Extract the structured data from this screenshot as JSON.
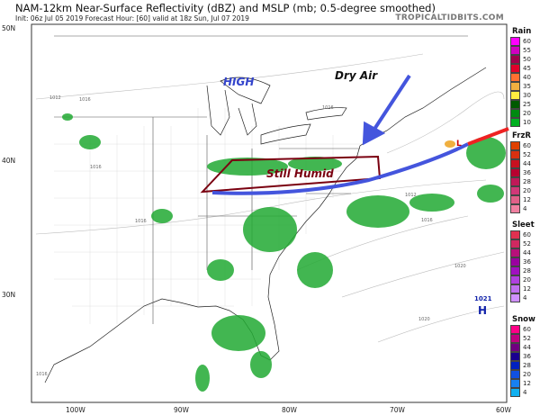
{
  "header": {
    "title": "NAM-12km Near-Surface Reflectivity (dBZ) and MSLP (mb; 0.5-degree smoothed)",
    "subtitle": "Init: 06z Jul 05 2019   Forecast Hour: [60]   valid at 18z Sun, Jul 07 2019",
    "site": "TROPICALTIDBITS.COM"
  },
  "axes": {
    "lat": [
      "50N",
      "40N",
      "30N"
    ],
    "lon": [
      "100W",
      "90W",
      "80W",
      "70W",
      "60W"
    ]
  },
  "annotations": {
    "high": "HIGH",
    "dry": "Dry Air",
    "humid": "Still Humid",
    "low": "L",
    "h_value": "1021",
    "h": "H"
  },
  "isobars": [
    "1016",
    "1012",
    "1016",
    "1016",
    "1012",
    "1016",
    "1020",
    "1020",
    "1016",
    "1016"
  ],
  "legends": [
    {
      "title": "Rain",
      "labels": [
        "60",
        "55",
        "50",
        "45",
        "40",
        "35",
        "30",
        "25",
        "20",
        "10"
      ],
      "colors": [
        "#ff00ff",
        "#d000c0",
        "#a0004a",
        "#e0002a",
        "#ff7030",
        "#f0b040",
        "#ffee40",
        "#005a00",
        "#008a10",
        "#00b020",
        "#00d030",
        "#30f040",
        "#ffffff"
      ]
    },
    {
      "title": "FrzR",
      "labels": [
        "60",
        "52",
        "44",
        "36",
        "28",
        "20",
        "12",
        "4"
      ],
      "colors": [
        "#e04000",
        "#d83010",
        "#c81020",
        "#b80030",
        "#c01858",
        "#d03878",
        "#e06088",
        "#f080a0",
        "#ffa0b8",
        "#ffffff"
      ]
    },
    {
      "title": "Sleet",
      "labels": [
        "60",
        "52",
        "44",
        "36",
        "28",
        "20",
        "12",
        "4"
      ],
      "colors": [
        "#e03050",
        "#d02860",
        "#b8107a",
        "#9a00a0",
        "#a010c0",
        "#b040e0",
        "#c070f0",
        "#d090ff",
        "#d8b0ff",
        "#ffffff"
      ]
    },
    {
      "title": "Snow",
      "labels": [
        "60",
        "52",
        "44",
        "36",
        "28",
        "20",
        "12",
        "4"
      ],
      "colors": [
        "#ff0088",
        "#c00080",
        "#700080",
        "#1a0090",
        "#0020c0",
        "#1050e0",
        "#1880f0",
        "#10b0f0",
        "#20d8f8",
        "#40f0ff"
      ]
    }
  ],
  "colors": {
    "arrow": "#4455dd",
    "front_red": "#ee2222",
    "humid_box": "#7a0010",
    "precip": "#22aa33"
  }
}
